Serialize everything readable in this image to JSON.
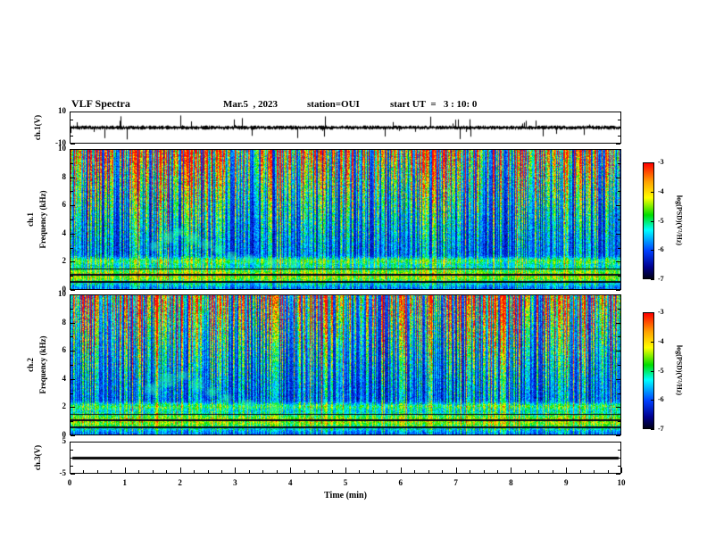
{
  "header": {
    "title": "VLF Spectra",
    "date": "Mar.5  , 2023",
    "station": "station=OUI",
    "start_ut": "start UT  =   3 : 10: 0"
  },
  "x_axis": {
    "label": "Time (min)",
    "min": 0,
    "max": 10,
    "tick_labels": [
      "0",
      "1",
      "2",
      "3",
      "4",
      "5",
      "6",
      "7",
      "8",
      "9",
      "10"
    ]
  },
  "panels": {
    "ch1_wave": {
      "ylabel": "ch.1(V)",
      "tick_labels": [
        "10",
        "-10"
      ],
      "ymin": -10,
      "ymax": 10
    },
    "ch1_spec": {
      "channel": "ch.1",
      "ylabel": "Frequency (kHz)",
      "tick_labels": [
        "10",
        "8",
        "6",
        "4",
        "2",
        "0"
      ],
      "ymin": 0,
      "ymax": 10
    },
    "ch2_spec": {
      "channel": "ch.2",
      "ylabel": "Frequency (kHz)",
      "tick_labels": [
        "10",
        "8",
        "6",
        "4",
        "2",
        "0"
      ],
      "ymin": 0,
      "ymax": 10
    },
    "ch3_wave": {
      "ylabel": "ch.3(V)",
      "tick_labels": [
        "5",
        "-5"
      ],
      "ymin": -5,
      "ymax": 5
    }
  },
  "colorbar": {
    "label": "log(PSD)(V²/Hz)",
    "tick_labels": [
      "-3",
      "-4",
      "-5",
      "-6",
      "-7"
    ],
    "zmin": -7,
    "zmax": -3,
    "stops": [
      {
        "p": 0.0,
        "c": "#ff0000"
      },
      {
        "p": 0.16,
        "c": "#ffa000"
      },
      {
        "p": 0.3,
        "c": "#ffff00"
      },
      {
        "p": 0.45,
        "c": "#00dd00"
      },
      {
        "p": 0.58,
        "c": "#00ffff"
      },
      {
        "p": 0.76,
        "c": "#0040ff"
      },
      {
        "p": 0.9,
        "c": "#000090"
      },
      {
        "p": 1.0,
        "c": "#000018"
      }
    ]
  },
  "chart_data": [
    {
      "type": "line",
      "name": "ch1_waveform",
      "xlabel": "Time (min)",
      "xlim": [
        0,
        10
      ],
      "ylabel": "ch.1(V)",
      "ylim": [
        -10,
        10
      ],
      "summary": "Continuous noise trace of roughly ±1 V with frequent impulsive spikes reaching about ±9 V throughout the 10-minute record."
    },
    {
      "type": "heatmap",
      "name": "ch1_spectrogram",
      "xlabel": "Time (min)",
      "xlim": [
        0,
        10
      ],
      "ylabel": "Frequency (kHz)",
      "ylim": [
        0,
        10
      ],
      "zlabel": "log(PSD)(V²/Hz)",
      "zlim": [
        -7,
        -3
      ],
      "summary": "Dense vertical broadband sferic streaks (green–yellow–red) over a dark blue background; strongest intensities above ~5 kHz; enhanced green band below ~2 kHz with narrow black horizontal lines near 0.6, 1.0 and 1.5 kHz; patchy cyan emissions near 2–4.5 kHz around t = 1.5–3 min descending toward ~2 kHz by t ≈ 4 min."
    },
    {
      "type": "heatmap",
      "name": "ch2_spectrogram",
      "xlabel": "Time (min)",
      "xlim": [
        0,
        10
      ],
      "ylabel": "Frequency (kHz)",
      "ylim": [
        0,
        10
      ],
      "zlabel": "log(PSD)(V²/Hz)",
      "zlim": [
        -7,
        -3
      ],
      "summary": "Same broadband vertical streak structure as ch.1 with enhanced low-frequency band below ~2 kHz, black horizontal interference lines, and cyan patchy emissions near 2–4.5 kHz around t = 1.5–3 min."
    },
    {
      "type": "line",
      "name": "ch3_waveform",
      "xlabel": "Time (min)",
      "xlim": [
        0,
        10
      ],
      "ylabel": "ch.3(V)",
      "ylim": [
        -5,
        5
      ],
      "summary": "Flat line at 0 V for the whole record (no signal on channel 3)."
    }
  ]
}
